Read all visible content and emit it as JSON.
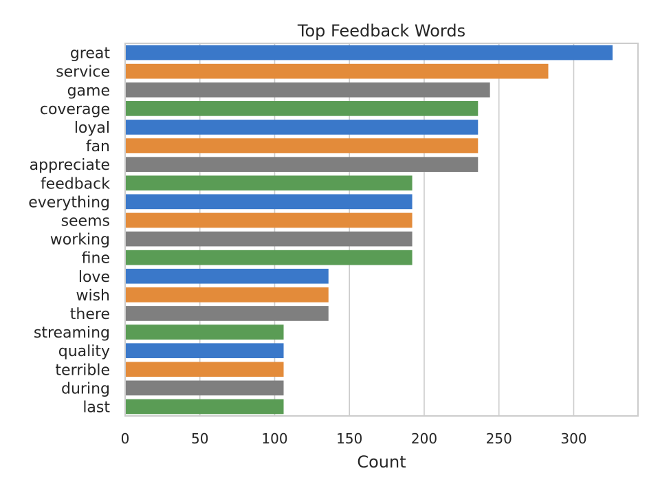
{
  "chart_data": {
    "type": "bar",
    "orientation": "horizontal",
    "title": "Top Feedback Words",
    "xlabel": "Count",
    "ylabel": "",
    "categories": [
      "great",
      "service",
      "game",
      "coverage",
      "loyal",
      "fan",
      "appreciate",
      "feedback",
      "everything",
      "seems",
      "working",
      "fine",
      "love",
      "wish",
      "there",
      "streaming",
      "quality",
      "terrible",
      "during",
      "last"
    ],
    "values": [
      326,
      283,
      244,
      236,
      236,
      236,
      236,
      192,
      192,
      192,
      192,
      192,
      136,
      136,
      136,
      106,
      106,
      106,
      106,
      106
    ],
    "xlim": [
      0,
      343
    ],
    "xticks": [
      0,
      50,
      100,
      150,
      200,
      250,
      300
    ],
    "grid": true,
    "palette": [
      "#3a78c9",
      "#e38b3a",
      "#7f7f7f",
      "#5a9c55"
    ]
  }
}
